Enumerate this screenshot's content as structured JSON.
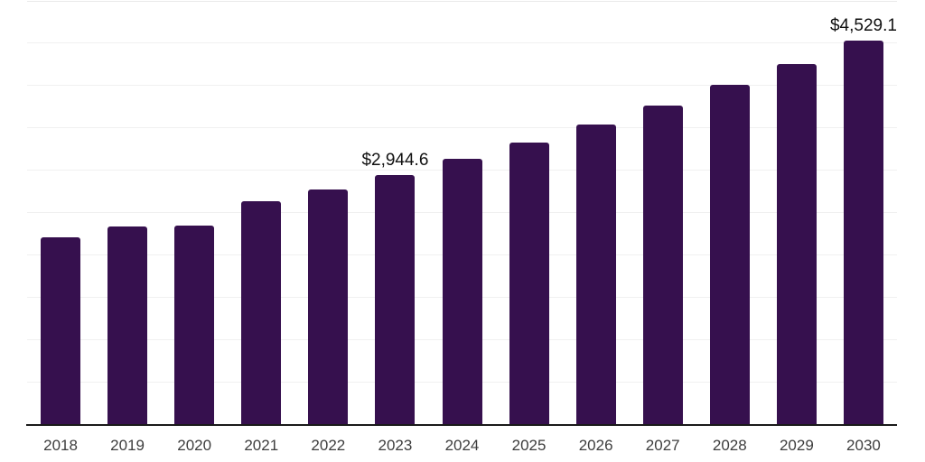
{
  "chart_data": {
    "type": "bar",
    "title": "",
    "xlabel": "",
    "ylabel": "",
    "categories": [
      "2018",
      "2019",
      "2020",
      "2021",
      "2022",
      "2023",
      "2024",
      "2025",
      "2026",
      "2027",
      "2028",
      "2029",
      "2030"
    ],
    "values": [
      2210,
      2340,
      2350,
      2630,
      2770,
      2944.6,
      3131,
      3330,
      3541,
      3766,
      4005,
      4259,
      4529.1
    ],
    "value_labels": [
      {
        "category": "2023",
        "text": "$2,944.6"
      },
      {
        "category": "2030",
        "text": "$4,529.1"
      }
    ],
    "ylim": [
      0,
      5000
    ],
    "grid_step": 500,
    "grid": "horizontal-only",
    "legend_position": "none",
    "y_tick_labels_visible": false
  },
  "colors": {
    "bar": "#36104e",
    "gridline": "#f0f0f0",
    "gridline_top": "#e9e9e9",
    "axis_line": "#1a1a1a",
    "x_tick_text": "#3d3d3d",
    "value_label_text": "#111111",
    "background": "#ffffff"
  }
}
